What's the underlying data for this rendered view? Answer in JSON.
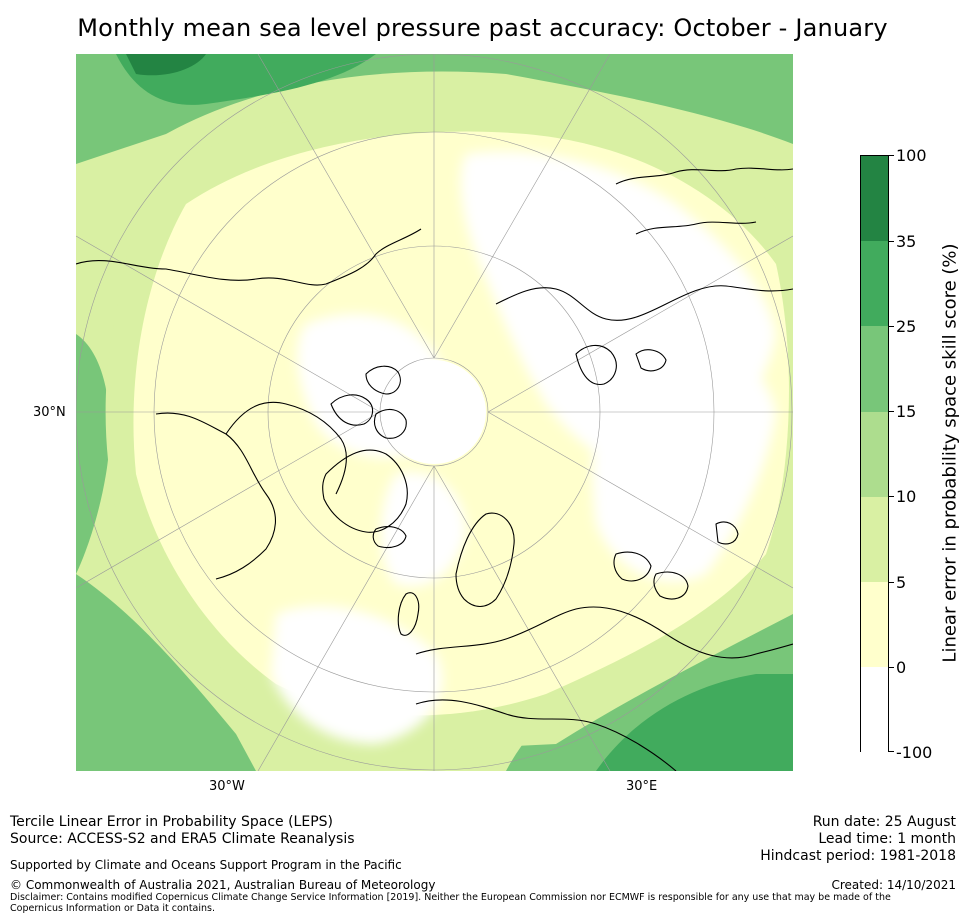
{
  "title": "Monthly mean sea level pressure past accuracy: October - January",
  "map": {
    "lat_label": "30°N",
    "lon_labels": [
      "30°W",
      "30°E"
    ],
    "palette": {
      "white": "#ffffff",
      "cream": "#ffffcc",
      "pale_green": "#d9f0a3",
      "light_green": "#addd8e",
      "mid_green": "#78c679",
      "green": "#41ab5d",
      "dark_green": "#238443",
      "coast": "#000000",
      "grid": "#9a9a9a"
    }
  },
  "colorbar": {
    "label": "Linear error in probability space skill score (%)",
    "ticks": [
      "100",
      "35",
      "25",
      "15",
      "10",
      "5",
      "0",
      "-100"
    ],
    "colors_top_to_bottom": [
      "#238443",
      "#41ab5d",
      "#78c679",
      "#addd8e",
      "#d9f0a3",
      "#ffffcc",
      "#ffffff"
    ]
  },
  "footer": {
    "line1": "Tercile Linear Error in Probability Space (LEPS)",
    "line2": "Source: ACCESS-S2 and ERA5 Climate Reanalysis",
    "supported": "Supported by Climate and Oceans Support Program in the Pacific",
    "copyright": "© Commonwealth of Australia 2021, Australian Bureau of Meteorology",
    "disclaimer": "Disclaimer: Contains modified Copernicus Climate Change Service Information [2019]. Neither the European Commission nor ECMWF is responsible for any use that may be made of the Copernicus Information or Data it contains.",
    "run_date": "Run date: 25 August",
    "lead_time": "Lead time: 1 month",
    "hindcast": "Hindcast period: 1981-2018",
    "created": "Created: 14/10/2021"
  }
}
